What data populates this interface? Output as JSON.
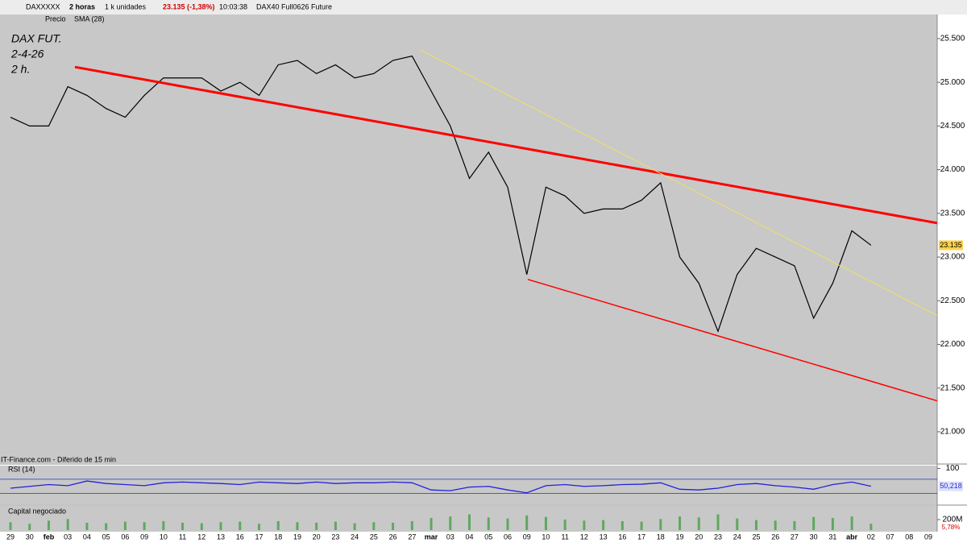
{
  "toolbar": {
    "symbol": "DAXXXXX",
    "interval": "2 horas",
    "units": "1 k unidades",
    "quote": "23.135 (-1,38%)",
    "time": "10:03:38",
    "instrument": "DAX40 Full0626 Future",
    "price_tab": "Precio",
    "sma_tab": "SMA (28)"
  },
  "chart_data": [
    {
      "type": "line",
      "annotation": [
        "DAX FUT.",
        "2-4-26",
        "2 h."
      ],
      "source": "IT-Finance.com - Diferido de 15 min",
      "color": "#000000",
      "categories": [
        "29",
        "30",
        "feb",
        "03",
        "04",
        "05",
        "06",
        "09",
        "10",
        "11",
        "12",
        "13",
        "16",
        "17",
        "18",
        "19",
        "20",
        "23",
        "24",
        "25",
        "26",
        "27",
        "mar",
        "03",
        "04",
        "05",
        "06",
        "09",
        "10",
        "11",
        "12",
        "13",
        "16",
        "17",
        "18",
        "19",
        "20",
        "23",
        "24",
        "25",
        "26",
        "27",
        "30",
        "31",
        "abr",
        "02",
        "07",
        "08",
        "09"
      ],
      "values": [
        24600,
        24500,
        24500,
        24950,
        24850,
        24700,
        24600,
        24850,
        25050,
        25050,
        25050,
        24900,
        25000,
        24850,
        25200,
        25250,
        25100,
        25200,
        25050,
        25100,
        25250,
        25300,
        24900,
        24500,
        23900,
        24200,
        23800,
        22800,
        23800,
        23700,
        23500,
        23550,
        23550,
        23650,
        23850,
        23000,
        22700,
        22150,
        22800,
        23100,
        23000,
        22900,
        22300,
        22700,
        23300,
        23135,
        null,
        null,
        null
      ],
      "ylim": [
        20640,
        25776
      ],
      "yticks": [
        {
          "value": 21000,
          "label": "21.000"
        },
        {
          "value": 21500,
          "label": "21.500"
        },
        {
          "value": 22000,
          "label": "22.000"
        },
        {
          "value": 22500,
          "label": "22.500"
        },
        {
          "value": 23000,
          "label": "23.000"
        },
        {
          "value": 23500,
          "label": "23.500"
        },
        {
          "value": 24000,
          "label": "24.000"
        },
        {
          "value": 24500,
          "label": "24.500"
        },
        {
          "value": 25000,
          "label": "25.000"
        },
        {
          "value": 25500,
          "label": "25.500"
        }
      ],
      "last_price": {
        "value": 23135,
        "label": "23.135"
      },
      "trendlines": [
        {
          "color": "#ff0000",
          "width": 3,
          "points": [
            [
              3.37,
              25175
            ],
            [
              48.46,
              23389
            ]
          ]
        },
        {
          "color": "#f0e060",
          "width": 1,
          "points": [
            [
              21.45,
              25368
            ],
            [
              48.46,
              22330
            ]
          ]
        },
        {
          "color": "#ff0000",
          "width": 1.5,
          "points": [
            [
              27.05,
              22744
            ],
            [
              48.46,
              21354
            ]
          ]
        }
      ]
    },
    {
      "type": "line",
      "name": "RSI (14)",
      "color": "#2222dd",
      "ylim": [
        0,
        100
      ],
      "yticks": [
        100
      ],
      "levels": [
        30,
        70
      ],
      "values": [
        45,
        50,
        55,
        52,
        65,
        58,
        55,
        52,
        60,
        62,
        60,
        58,
        55,
        62,
        60,
        58,
        62,
        58,
        60,
        60,
        62,
        60,
        40,
        38,
        48,
        50,
        40,
        32,
        52,
        55,
        50,
        52,
        55,
        56,
        60,
        42,
        40,
        45,
        55,
        58,
        52,
        48,
        42,
        55,
        62,
        50.218,
        null,
        null,
        null
      ],
      "last_value": {
        "value": 50.218,
        "label": "50,218"
      }
    },
    {
      "type": "bar",
      "name": "Capital negociado",
      "color": "#5fa85f",
      "ylim": [
        0,
        460
      ],
      "yticks": [
        {
          "value": 200,
          "label": "200M"
        }
      ],
      "badge": "5,78%",
      "values": [
        150,
        120,
        180,
        210,
        140,
        130,
        160,
        150,
        170,
        140,
        130,
        150,
        160,
        120,
        170,
        150,
        140,
        160,
        130,
        150,
        140,
        170,
        230,
        260,
        300,
        240,
        220,
        280,
        250,
        200,
        180,
        190,
        170,
        160,
        210,
        260,
        240,
        300,
        220,
        190,
        180,
        170,
        250,
        230,
        260,
        120,
        null,
        null,
        null
      ]
    }
  ]
}
